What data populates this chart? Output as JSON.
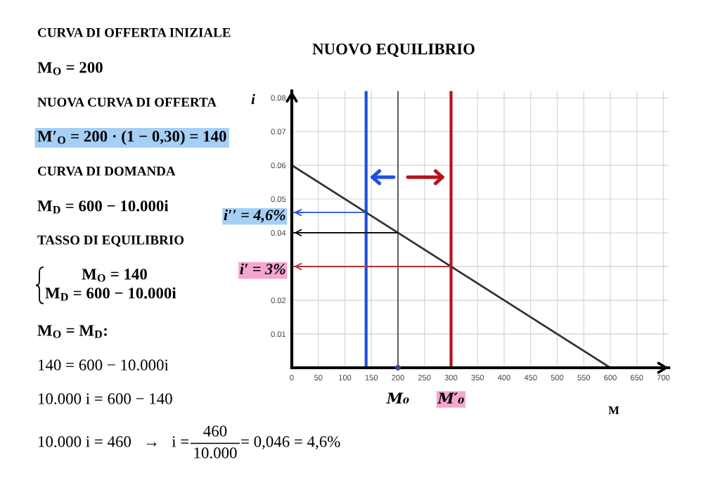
{
  "chart_data": {
    "type": "line",
    "title": "NUOVO EQUILIBRIO",
    "xlabel": "M",
    "ylabel": "i",
    "xlim": [
      0,
      710
    ],
    "ylim": [
      0,
      0.082
    ],
    "xticks": [
      0,
      50,
      100,
      150,
      200,
      250,
      300,
      350,
      400,
      450,
      500,
      550,
      600,
      650,
      700
    ],
    "yticks": [
      0.01,
      0.02,
      {
        "value": 0.03,
        "label": null
      },
      0.04,
      0.05,
      0.06,
      0.07,
      0.08
    ],
    "grid": true,
    "series": [
      {
        "color": "#333333",
        "x": [
          0,
          600
        ],
        "values": [
          0.06,
          0
        ]
      },
      {
        "color": "#2c56d8",
        "x": [
          140,
          0
        ],
        "values": [
          0.046,
          0.046
        ]
      },
      {
        "color": "#111111",
        "x": [
          200,
          0
        ],
        "values": [
          0.04,
          0.04
        ]
      },
      {
        "color": "#b5303a",
        "x": [
          300,
          0
        ],
        "values": [
          0.03,
          0.03
        ]
      },
      {
        "type": "scatter",
        "color": "#2f4f8f",
        "x": [
          200
        ],
        "values": [
          0
        ]
      }
    ],
    "ref_lines": [
      {
        "axis": "x",
        "value": 140,
        "color": "#1d4fe0"
      },
      {
        "axis": "x",
        "value": 200,
        "color": "#333333",
        "label": "M₀"
      },
      {
        "axis": "x",
        "value": 300,
        "color": "#b5121b",
        "label": "M′₀"
      }
    ],
    "annotations": [
      "CURVA DI OFFERTA INIZIALE",
      "M$_{O}$ = 200",
      "NUOVA CURVA DI OFFERTA",
      "M′$_{O}$ = 200 · (1 − 0,30) = 140",
      "CURVA DI DOMANDA",
      "M$_{D}$ = 600 − 10.000i",
      "TASSO DI EQUILIBRIO",
      "M$_{O}$ = 140",
      "M$_{D}$ = 600 − 10.000i",
      "M$_{O}$ = M$_{D}$:",
      "140 = 600 − 10.000i",
      "10.000 i = 600 − 140",
      "10.000 i = 460   →   i =",
      "460",
      "10.000",
      "= 0,046 = 4,6%",
      {
        "text": "i′′ = 4,6%",
        "x": 0,
        "y": 0.046
      },
      {
        "text": "i′ = 3%",
        "x": 0,
        "y": 0.03
      }
    ]
  }
}
